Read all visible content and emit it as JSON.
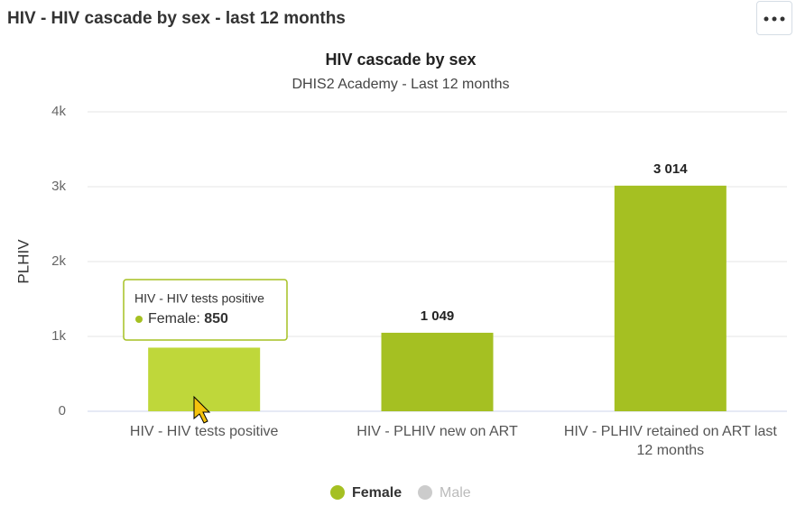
{
  "panel_title": "HIV - HIV cascade by sex - last 12 months",
  "chart_data": {
    "type": "bar",
    "title": "HIV cascade by sex",
    "subtitle": "DHIS2 Academy - Last 12 months",
    "y_label": "PLHIV",
    "categories": [
      "HIV - HIV tests positive",
      "HIV - PLHIV new on ART",
      "HIV - PLHIV retained on ART last 12 months"
    ],
    "series": [
      {
        "name": "Female",
        "color": "#a5c022",
        "values": [
          850,
          1049,
          3014
        ],
        "value_labels": [
          "850",
          "1 049",
          "3 014"
        ]
      },
      {
        "name": "Male",
        "color": "#cccccc",
        "values": [
          null,
          null,
          null
        ],
        "hidden": true
      }
    ],
    "ylim": [
      0,
      4000
    ],
    "yticks": [
      0,
      {
        "value": 1000,
        "label": "1k"
      },
      {
        "value": 2000,
        "label": "2k"
      },
      {
        "value": 3000,
        "label": "3k"
      },
      {
        "value": 4000,
        "label": "4k"
      }
    ],
    "grid": true,
    "legend": "bottom"
  }
}
